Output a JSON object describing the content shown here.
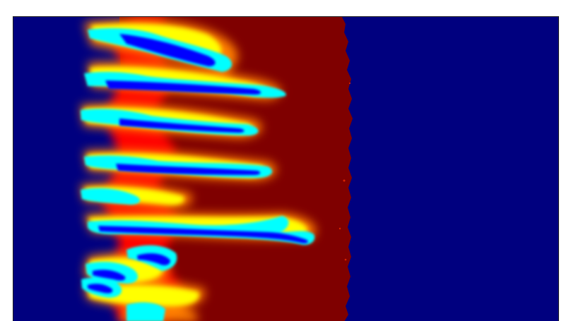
{
  "image": {
    "subject": "fluid-fingering-field",
    "colormap": "jet",
    "colors": {
      "low": "#00007f",
      "blue": "#0000ff",
      "cyan": "#00ffff",
      "green": "#7fff7f",
      "yellow": "#ffff00",
      "orange": "#ff7f00",
      "red": "#ff0000",
      "high": "#7f0000",
      "frame": "#222222",
      "background": "#ffffff"
    }
  }
}
